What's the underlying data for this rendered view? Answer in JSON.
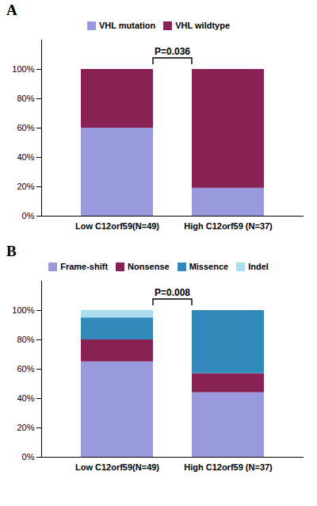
{
  "chart_data": [
    {
      "type": "bar",
      "stacked": true,
      "title": "A",
      "categories": [
        "Low C12orf59(N=49)",
        "High C12orf59 (N=37)"
      ],
      "series": [
        {
          "name": "VHL mutation",
          "color": "#9999dd",
          "values": [
            60,
            19
          ]
        },
        {
          "name": "VHL wildtype",
          "color": "#882255",
          "values": [
            40,
            81
          ]
        }
      ],
      "ylim": [
        0,
        120
      ],
      "yticks": [
        {
          "value": 0,
          "label": "0%"
        },
        {
          "value": 20,
          "label": "20%"
        },
        {
          "value": 40,
          "label": "40%"
        },
        {
          "value": 60,
          "label": "60%"
        },
        {
          "value": 80,
          "label": "80%"
        },
        {
          "value": 100,
          "label": "100%"
        }
      ],
      "annotations": [
        {
          "text": "P=0.036"
        }
      ],
      "legend": "upper center",
      "grid": false
    },
    {
      "type": "bar",
      "stacked": true,
      "title": "B",
      "categories": [
        "Low C12orf59(N=49)",
        "High C12orf59 (N=37)"
      ],
      "series": [
        {
          "name": "Frame-shift",
          "color": "#9999dd",
          "values": [
            65,
            44
          ]
        },
        {
          "name": "Nonsense",
          "color": "#882255",
          "values": [
            15,
            13
          ]
        },
        {
          "name": "Missence",
          "color": "#3388bb",
          "values": [
            15,
            43
          ]
        },
        {
          "name": "Indel",
          "color": "#aaddee",
          "values": [
            5,
            0
          ]
        }
      ],
      "ylim": [
        0,
        120
      ],
      "yticks": [
        {
          "value": 0,
          "label": "0%"
        },
        {
          "value": 20,
          "label": "20%"
        },
        {
          "value": 40,
          "label": "40%"
        },
        {
          "value": 60,
          "label": "60%"
        },
        {
          "value": 80,
          "label": "80%"
        },
        {
          "value": 100,
          "label": "100%"
        }
      ],
      "annotations": [
        {
          "text": "P=0.008"
        }
      ],
      "legend": "upper center",
      "grid": false
    }
  ]
}
